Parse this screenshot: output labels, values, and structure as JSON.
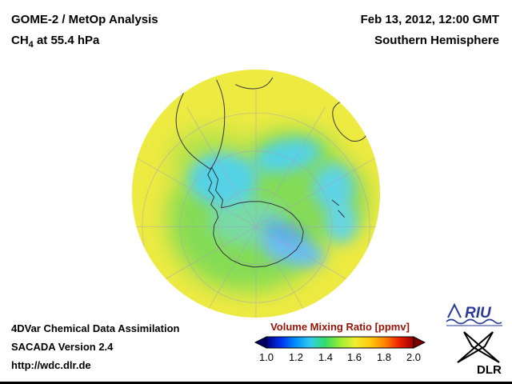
{
  "header": {
    "title": "GOME-2 / MetOp Analysis",
    "subtitle_prefix": "CH",
    "subtitle_sub": "4",
    "subtitle_suffix": " at 55.4 hPa",
    "datetime": "Feb 13, 2012, 12:00 GMT",
    "hemisphere": "Southern Hemisphere"
  },
  "footer": {
    "line1": "4DVar Chemical Data Assimilation",
    "line2": "SACADA Version 2.4",
    "line3": "http://wdc.dlr.de"
  },
  "colorbar": {
    "title": "Volume Mixing Ratio [ppmv]",
    "title_color": "#951407",
    "ticks": [
      "1.0",
      "1.2",
      "1.4",
      "1.6",
      "1.8",
      "2.0"
    ],
    "gradient": [
      "#000085",
      "#0033ee",
      "#0090ff",
      "#33ccee",
      "#33dd66",
      "#99ee33",
      "#eeee33",
      "#ffcc11",
      "#ff8800",
      "#ee2200",
      "#990000"
    ],
    "left_arrow_color": "#000066",
    "right_arrow_color": "#7a0000"
  },
  "logos": {
    "riu_text": "RIU",
    "riu_color": "#2a3b96",
    "dlr_text": "DLR"
  },
  "chart_data": {
    "type": "heatmap",
    "title": "GOME-2 / MetOp Analysis CH4 at 55.4 hPa",
    "timestamp": "Feb 13, 2012, 12:00 GMT",
    "region": "Southern Hemisphere",
    "projection": "orthographic, south-polar view",
    "field": "CH4 volume mixing ratio",
    "units": "ppmv",
    "scale_range": [
      1.0,
      2.0
    ],
    "scale_ticks": [
      1.0,
      1.2,
      1.4,
      1.6,
      1.8,
      2.0
    ],
    "qualitative_field_values": {
      "subtropical_ring_yellow": 1.6,
      "midlatitude_green_band": 1.45,
      "polar_vortex_cyan_swirl": 1.25,
      "polar_minimum_blue_patches": 1.15
    },
    "visible_coastlines": [
      "Antarctica",
      "South America",
      "southern Africa",
      "Australia",
      "New Zealand"
    ]
  }
}
